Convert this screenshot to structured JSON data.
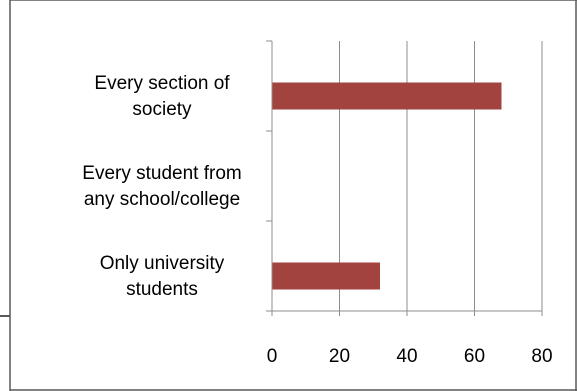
{
  "chart_data": {
    "type": "bar",
    "orientation": "horizontal",
    "categories": [
      [
        "Every section of",
        "society"
      ],
      [
        "Every student from",
        "any school/college"
      ],
      [
        "Only university",
        "students"
      ]
    ],
    "values": [
      68,
      0,
      32
    ],
    "xlim": [
      0,
      80
    ],
    "xticks": [
      "0",
      "20",
      "40",
      "60",
      "80"
    ],
    "grid": true,
    "bar_color": "#A34340",
    "gridline_color": "#8C8C8C",
    "frame_color": "#595959"
  }
}
